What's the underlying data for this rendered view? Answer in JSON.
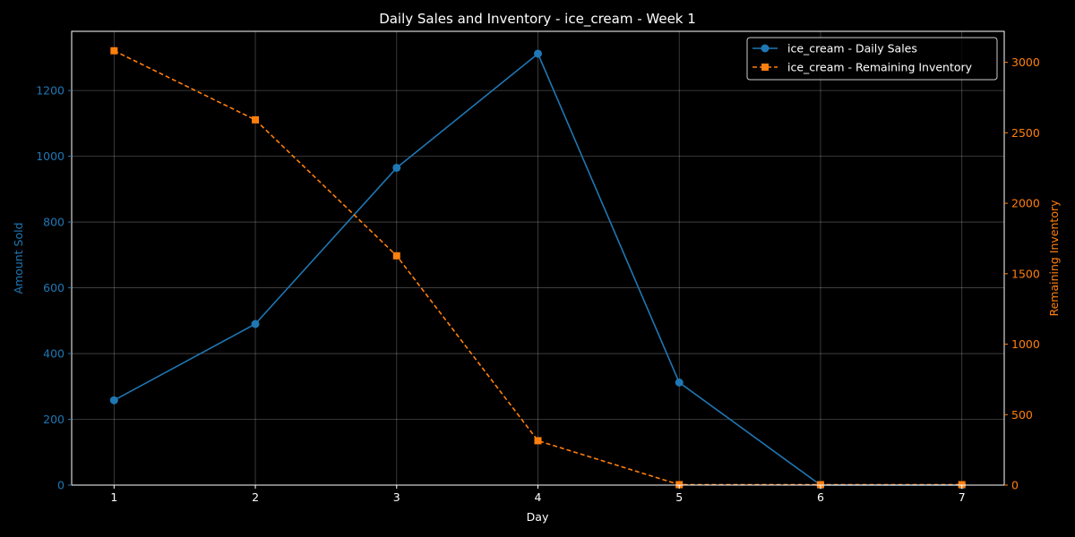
{
  "chart_data": {
    "type": "line",
    "title": "Daily Sales and Inventory - ice_cream - Week 1",
    "xlabel": "Day",
    "ylabel_left": "Amount Sold",
    "ylabel_right": "Remaining Inventory",
    "x": [
      1,
      2,
      3,
      4,
      5,
      6,
      7
    ],
    "xlim": [
      0.7,
      7.3
    ],
    "ylim_left": [
      0,
      1380
    ],
    "ylim_right": [
      0,
      3220
    ],
    "yticks_left": [
      0,
      200,
      400,
      600,
      800,
      1000,
      1200
    ],
    "yticks_right": [
      0,
      500,
      1000,
      1500,
      2000,
      2500,
      3000
    ],
    "grid": true,
    "legend_placement": "top-right",
    "series": [
      {
        "name": "ice_cream - Daily Sales",
        "axis": "left",
        "color": "#1f77b4",
        "line_style": "solid",
        "marker": "circle",
        "values": [
          258,
          490,
          965,
          1312,
          312,
          0,
          0
        ]
      },
      {
        "name": "ice_cream - Remaining Inventory",
        "axis": "right",
        "color": "#ff7f0e",
        "line_style": "dashed",
        "marker": "square",
        "values": [
          3082,
          2592,
          1627,
          315,
          3,
          3,
          3
        ]
      }
    ]
  }
}
